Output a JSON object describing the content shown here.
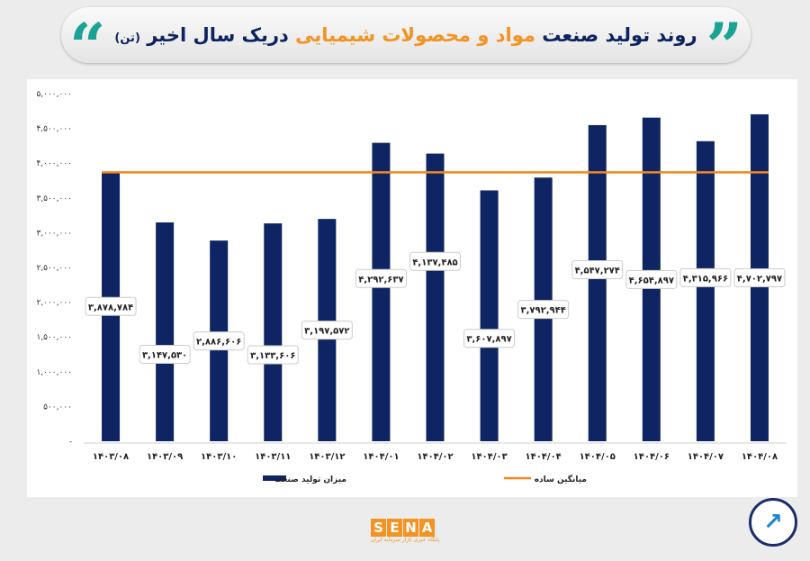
{
  "header": {
    "title_part1": "روند تولید صنعت",
    "title_highlight": "مواد و محصولات شیمیایی",
    "title_part2": "دریک سال اخیر",
    "title_unit": "(تن)",
    "quote_icon": "double-quote-icon"
  },
  "footer": {
    "logo_letters": [
      "S",
      "E",
      "N",
      "A"
    ],
    "logo_subtitle": "پایگاه خبری بازار سرمایه ایران",
    "badge_icon": "trend-arrow-icon"
  },
  "colors": {
    "bar": "#0f2462",
    "average_line": "#f0881e",
    "highlight": "#f39322",
    "accent": "#1aa394"
  },
  "chart_data": {
    "type": "bar",
    "categories": [
      "۱۴۰۳/۰۸",
      "۱۴۰۳/۰۹",
      "۱۴۰۳/۱۰",
      "۱۴۰۳/۱۱",
      "۱۴۰۳/۱۲",
      "۱۴۰۴/۰۱",
      "۱۴۰۴/۰۲",
      "۱۴۰۴/۰۳",
      "۱۴۰۴/۰۴",
      "۱۴۰۴/۰۵",
      "۱۴۰۴/۰۶",
      "۱۴۰۴/۰۷",
      "۱۴۰۴/۰۸"
    ],
    "series": [
      {
        "name": "میزان تولید صنعت",
        "type": "bar",
        "values": [
          3878784,
          3147530,
          2886606,
          3133606,
          3197572,
          4292637,
          4137485,
          3607897,
          3792944,
          4547274,
          4654897,
          4315966,
          4702797
        ],
        "labels": [
          "۳,۸۷۸,۷۸۴",
          "۳,۱۴۷,۵۳۰",
          "۲,۸۸۶,۶۰۶",
          "۳,۱۳۳,۶۰۶",
          "۳,۱۹۷,۵۷۲",
          "۴,۲۹۲,۶۳۷",
          "۴,۱۳۷,۴۸۵",
          "۳,۶۰۷,۸۹۷",
          "۳,۷۹۲,۹۴۴",
          "۴,۵۴۷,۲۷۴",
          "۴,۶۵۴,۸۹۷",
          "۴,۳۱۵,۹۶۶",
          "۴,۷۰۲,۷۹۷"
        ]
      },
      {
        "name": "میانگین ساده",
        "type": "line",
        "value": 3868923
      }
    ],
    "yticks": [
      0,
      500000,
      1000000,
      1500000,
      2000000,
      2500000,
      3000000,
      3500000,
      4000000,
      4500000,
      5000000
    ],
    "ytick_labels": [
      "-",
      "۵۰۰,۰۰۰",
      "۱,۰۰۰,۰۰۰",
      "۱,۵۰۰,۰۰۰",
      "۲,۰۰۰,۰۰۰",
      "۲,۵۰۰,۰۰۰",
      "۳,۰۰۰,۰۰۰",
      "۳,۵۰۰,۰۰۰",
      "۴,۰۰۰,۰۰۰",
      "۴,۵۰۰,۰۰۰",
      "۵,۰۰۰,۰۰۰"
    ],
    "ylim": [
      0,
      5000000
    ],
    "grid": false,
    "legend": "bottom"
  }
}
